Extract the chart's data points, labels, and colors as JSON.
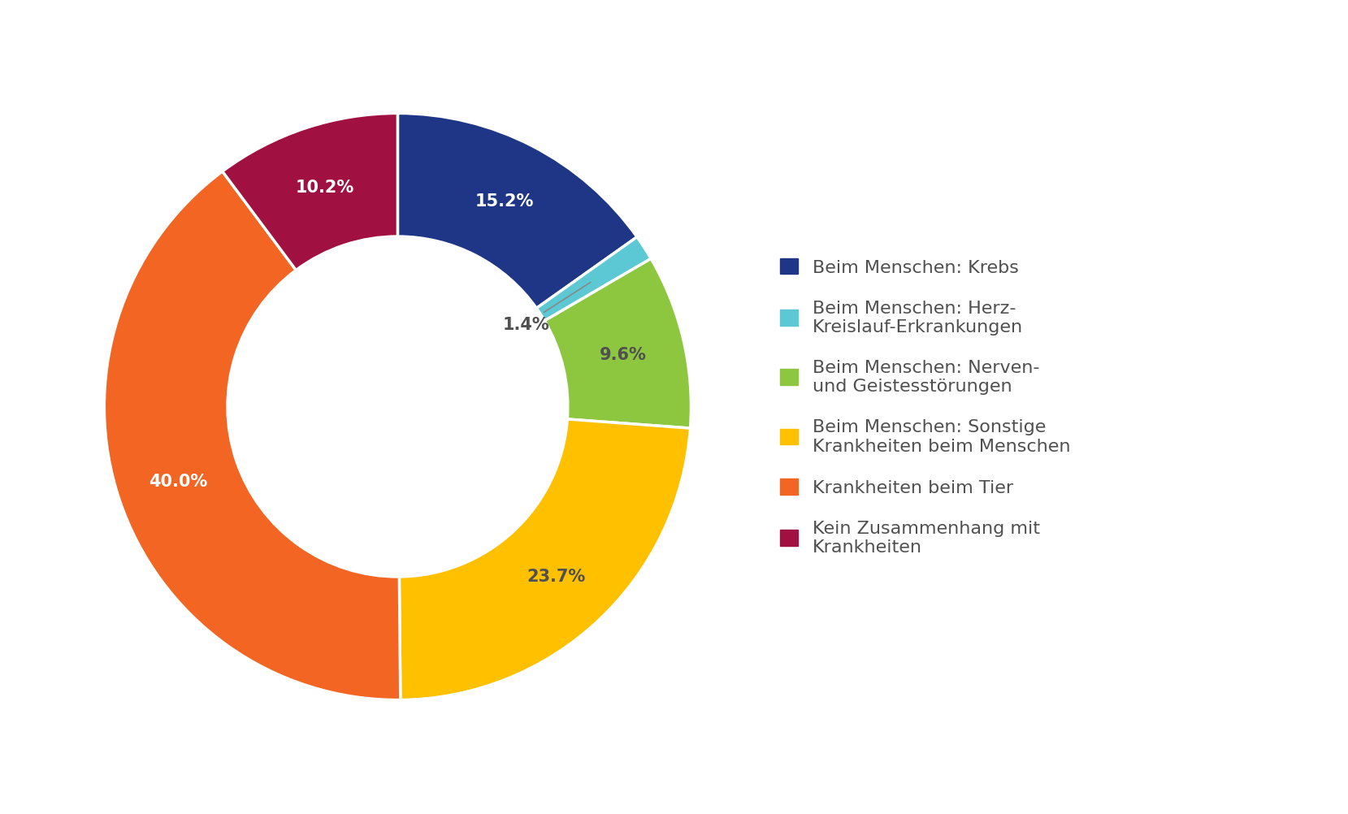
{
  "labels": [
    "Beim Menschen: Krebs",
    "Beim Menschen: Herz-\nKreislauf-Erkrankungen",
    "Beim Menschen: Nerven-\nund Geistesstörungen",
    "Beim Menschen: Sonstige\nKrankheiten beim Menschen",
    "Krankheiten beim Tier",
    "Kein Zusammenhang mit\nKrankheiten"
  ],
  "values": [
    15.2,
    1.4,
    9.6,
    23.7,
    40.0,
    10.2
  ],
  "colors": [
    "#1f3585",
    "#5bc8d4",
    "#8dc63f",
    "#ffc000",
    "#f26522",
    "#a01040"
  ],
  "pct_labels": [
    "15.2%",
    "1.4%",
    "9.6%",
    "23.7%",
    "40.0%",
    "10.2%"
  ],
  "background_color": "#ffffff",
  "donut_width": 0.42,
  "startangle": 90,
  "text_color": "#505050",
  "font_size_pct": 15,
  "font_size_legend": 16,
  "white_text_indices": [
    0,
    4,
    5
  ],
  "dark_text_indices": [
    2,
    3
  ]
}
